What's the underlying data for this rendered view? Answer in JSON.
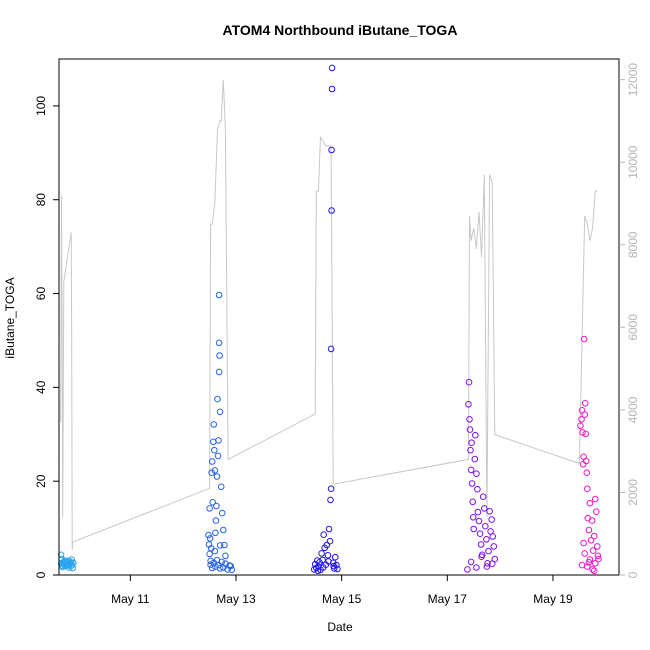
{
  "chart_data": {
    "type": "scatter",
    "title": "ATOM4 Northbound iButane_TOGA",
    "xlabel": "Date",
    "ylabel": "iButane_TOGA",
    "ylim": [
      0,
      110
    ],
    "y2lim": [
      0,
      12500
    ],
    "y2_label": "",
    "x_domain_days": [
      9.65,
      20.25
    ],
    "x_ticks": [
      {
        "label": "May 11",
        "value": 11
      },
      {
        "label": "May 13",
        "value": 13
      },
      {
        "label": "May 15",
        "value": 15
      },
      {
        "label": "May 17",
        "value": 17
      },
      {
        "label": "May 19",
        "value": 19
      }
    ],
    "y_ticks": [
      0,
      20,
      40,
      60,
      80,
      100
    ],
    "y2_ticks": [
      0,
      2000,
      4000,
      6000,
      8000,
      10000,
      12000
    ],
    "colors": {
      "altitude_line": "#c8c8c8",
      "right_axis": "#b5b5b5",
      "series_may10": "#29a3ef",
      "series_may12": "#2563eb",
      "series_may14": "#1f14f0",
      "series_may17": "#7c12f0",
      "series_may19": "#ef18c8"
    },
    "grid": false,
    "legend": "none",
    "altitude_series": {
      "name": "",
      "axis": "right",
      "points": [
        [
          9.68,
          3700
        ],
        [
          9.7,
          9200
        ],
        [
          9.72,
          1400
        ],
        [
          9.74,
          7100
        ],
        [
          9.88,
          8300
        ],
        [
          9.89,
          5800
        ],
        [
          9.9,
          600
        ],
        [
          9.91,
          800
        ],
        [
          12.5,
          2100
        ],
        [
          12.52,
          8500
        ],
        [
          12.55,
          8500
        ],
        [
          12.6,
          9000
        ],
        [
          12.65,
          10800
        ],
        [
          12.7,
          11000
        ],
        [
          12.72,
          11000
        ],
        [
          12.76,
          12000
        ],
        [
          12.8,
          10800
        ],
        [
          12.85,
          2800
        ],
        [
          14.5,
          3900
        ],
        [
          14.52,
          9300
        ],
        [
          14.56,
          9300
        ],
        [
          14.6,
          10600
        ],
        [
          14.65,
          10500
        ],
        [
          14.7,
          10400
        ],
        [
          14.8,
          10400
        ],
        [
          14.84,
          2200
        ],
        [
          17.4,
          2800
        ],
        [
          17.42,
          8700
        ],
        [
          17.45,
          8100
        ],
        [
          17.5,
          8400
        ],
        [
          17.55,
          7900
        ],
        [
          17.6,
          8800
        ],
        [
          17.65,
          7700
        ],
        [
          17.7,
          9700
        ],
        [
          17.75,
          1400
        ],
        [
          17.8,
          9700
        ],
        [
          17.85,
          9500
        ],
        [
          17.9,
          3400
        ],
        [
          19.5,
          2700
        ],
        [
          19.6,
          8700
        ],
        [
          19.65,
          8500
        ],
        [
          19.7,
          8100
        ],
        [
          19.75,
          8400
        ],
        [
          19.8,
          9300
        ],
        [
          19.84,
          9300
        ]
      ]
    },
    "series": [
      {
        "name": "",
        "color": "#29a3ef",
        "points": [
          [
            9.69,
            2.5
          ],
          [
            9.69,
            4.3
          ],
          [
            9.7,
            3.4
          ],
          [
            9.71,
            2
          ],
          [
            9.72,
            1.7
          ],
          [
            9.73,
            2.6
          ],
          [
            9.74,
            2.8
          ],
          [
            9.75,
            2.2
          ],
          [
            9.76,
            3.1
          ],
          [
            9.77,
            1.9
          ],
          [
            9.78,
            2.3
          ],
          [
            9.79,
            2.7
          ],
          [
            9.8,
            2
          ],
          [
            9.82,
            3
          ],
          [
            9.83,
            2.2
          ],
          [
            9.84,
            1.6
          ],
          [
            9.85,
            2.4
          ],
          [
            9.86,
            2.9
          ],
          [
            9.87,
            1.9
          ],
          [
            9.88,
            2.6
          ],
          [
            9.89,
            3.3
          ],
          [
            9.9,
            2.1
          ],
          [
            9.91,
            1.5
          ],
          [
            9.92,
            2.6
          ]
        ]
      },
      {
        "name": "",
        "color": "#2563eb",
        "points": [
          [
            12.48,
            8.5
          ],
          [
            12.49,
            6.5
          ],
          [
            12.5,
            14.2
          ],
          [
            12.51,
            7.8
          ],
          [
            12.52,
            3
          ],
          [
            12.53,
            5.7
          ],
          [
            12.54,
            21.8
          ],
          [
            12.55,
            24.2
          ],
          [
            12.56,
            15.5
          ],
          [
            12.57,
            28.4
          ],
          [
            12.58,
            32.1
          ],
          [
            12.59,
            26.6
          ],
          [
            12.6,
            22.3
          ],
          [
            12.61,
            9
          ],
          [
            12.62,
            11.6
          ],
          [
            12.63,
            14.7
          ],
          [
            12.64,
            21
          ],
          [
            12.65,
            37.5
          ],
          [
            12.66,
            25.4
          ],
          [
            12.67,
            28.7
          ],
          [
            12.68,
            43.3
          ],
          [
            12.68,
            49.5
          ],
          [
            12.68,
            59.7
          ],
          [
            12.69,
            46.8
          ],
          [
            12.7,
            34.8
          ],
          [
            12.72,
            18.8
          ],
          [
            12.74,
            13.2
          ],
          [
            12.76,
            9.6
          ],
          [
            12.78,
            6.4
          ],
          [
            12.52,
            2.2
          ],
          [
            12.55,
            1.5
          ],
          [
            12.58,
            2.6
          ],
          [
            12.61,
            1.8
          ],
          [
            12.64,
            3.2
          ],
          [
            12.67,
            2.1
          ],
          [
            12.7,
            1.4
          ],
          [
            12.73,
            2.8
          ],
          [
            12.76,
            1.6
          ],
          [
            12.8,
            2.4
          ],
          [
            12.84,
            1.2
          ],
          [
            12.88,
            2
          ],
          [
            12.5,
            4.5
          ],
          [
            12.6,
            5.1
          ],
          [
            12.7,
            6.3
          ],
          [
            12.8,
            4.1
          ],
          [
            12.9,
            1.9
          ],
          [
            12.92,
            1.1
          ]
        ]
      },
      {
        "name": "",
        "color": "#1f14f0",
        "points": [
          [
            14.48,
            1.2
          ],
          [
            14.5,
            2.3
          ],
          [
            14.52,
            1.5
          ],
          [
            14.54,
            3.1
          ],
          [
            14.56,
            1.8
          ],
          [
            14.58,
            2.7
          ],
          [
            14.6,
            1.1
          ],
          [
            14.62,
            4.6
          ],
          [
            14.64,
            3.2
          ],
          [
            14.66,
            8.6
          ],
          [
            14.68,
            5.8
          ],
          [
            14.7,
            2.2
          ],
          [
            14.72,
            6.4
          ],
          [
            14.74,
            4.2
          ],
          [
            14.76,
            9.8
          ],
          [
            14.78,
            7.2
          ],
          [
            14.79,
            16
          ],
          [
            14.8,
            18.4
          ],
          [
            14.8,
            48.2
          ],
          [
            14.81,
            77.7
          ],
          [
            14.81,
            90.6
          ],
          [
            14.82,
            103.6
          ],
          [
            14.82,
            108.1
          ],
          [
            14.84,
            2.6
          ],
          [
            14.86,
            1.4
          ],
          [
            14.88,
            3.8
          ],
          [
            14.9,
            2.1
          ],
          [
            14.92,
            1.3
          ],
          [
            14.55,
            0.9
          ],
          [
            14.65,
            1.6
          ],
          [
            14.75,
            2.9
          ],
          [
            14.85,
            1.9
          ]
        ]
      },
      {
        "name": "",
        "color": "#7c12f0",
        "points": [
          [
            17.38,
            1.2
          ],
          [
            17.4,
            36.4
          ],
          [
            17.41,
            41.1
          ],
          [
            17.42,
            33.2
          ],
          [
            17.43,
            31
          ],
          [
            17.44,
            26.6
          ],
          [
            17.45,
            22.4
          ],
          [
            17.46,
            28.2
          ],
          [
            17.47,
            19.5
          ],
          [
            17.48,
            15.6
          ],
          [
            17.49,
            12.3
          ],
          [
            17.5,
            9.8
          ],
          [
            17.52,
            24.7
          ],
          [
            17.53,
            29.8
          ],
          [
            17.55,
            21.6
          ],
          [
            17.57,
            18.3
          ],
          [
            17.58,
            13.4
          ],
          [
            17.6,
            11.5
          ],
          [
            17.62,
            8.8
          ],
          [
            17.64,
            6.5
          ],
          [
            17.66,
            4.3
          ],
          [
            17.68,
            16.7
          ],
          [
            17.7,
            14.2
          ],
          [
            17.72,
            10.4
          ],
          [
            17.74,
            7.6
          ],
          [
            17.76,
            2.5
          ],
          [
            17.78,
            5.1
          ],
          [
            17.8,
            13.6
          ],
          [
            17.82,
            9.3
          ],
          [
            17.84,
            11.8
          ],
          [
            17.86,
            8.2
          ],
          [
            17.88,
            6.1
          ],
          [
            17.9,
            3.4
          ],
          [
            17.45,
            2.8
          ],
          [
            17.55,
            1.6
          ],
          [
            17.65,
            3.9
          ],
          [
            17.75,
            1.8
          ],
          [
            17.85,
            2.4
          ]
        ]
      },
      {
        "name": "",
        "color": "#ef18c8",
        "points": [
          [
            19.52,
            31.8
          ],
          [
            19.54,
            33.2
          ],
          [
            19.55,
            35.1
          ],
          [
            19.56,
            30.4
          ],
          [
            19.57,
            23.6
          ],
          [
            19.58,
            25.2
          ],
          [
            19.59,
            50.3
          ],
          [
            19.6,
            34.2
          ],
          [
            19.61,
            36.6
          ],
          [
            19.62,
            30.1
          ],
          [
            19.63,
            24.3
          ],
          [
            19.64,
            21.8
          ],
          [
            19.65,
            18.4
          ],
          [
            19.66,
            12.1
          ],
          [
            19.68,
            9.6
          ],
          [
            19.7,
            15.3
          ],
          [
            19.72,
            7.4
          ],
          [
            19.74,
            11.6
          ],
          [
            19.76,
            5.2
          ],
          [
            19.78,
            8.3
          ],
          [
            19.8,
            16.2
          ],
          [
            19.82,
            13.5
          ],
          [
            19.84,
            6.1
          ],
          [
            19.86,
            3.4
          ],
          [
            19.55,
            2.1
          ],
          [
            19.6,
            4.6
          ],
          [
            19.65,
            1.8
          ],
          [
            19.7,
            3.3
          ],
          [
            19.75,
            1.2
          ],
          [
            19.8,
            2.5
          ],
          [
            19.85,
            4.1
          ],
          [
            19.58,
            6.8
          ],
          [
            19.68,
            2.7
          ],
          [
            19.78,
            0.9
          ]
        ]
      }
    ]
  }
}
